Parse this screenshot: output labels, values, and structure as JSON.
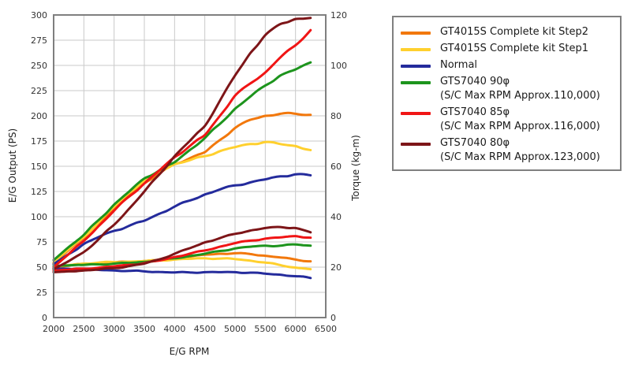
{
  "colors": {
    "background": "#ffffff",
    "plot_border": "#7f7f7f",
    "grid": "#c9c9c9",
    "tick_text": "#333333",
    "axis_title_text": "#222222",
    "legend_border": "#808080",
    "legend_text": "#1a1a1a"
  },
  "chart_data": {
    "type": "line",
    "title": "",
    "xlabel": "E/G RPM",
    "ylabel_left": "E/G Output (PS)",
    "ylabel_right": "Torque (kg-m)",
    "x_range": [
      2000,
      6500
    ],
    "y_left_range": [
      0,
      300
    ],
    "y_right_range": [
      0,
      120
    ],
    "x_ticks": [
      2000,
      2500,
      3000,
      3500,
      4000,
      4500,
      5000,
      5500,
      6000,
      6500
    ],
    "y_left_ticks": [
      0,
      25,
      50,
      75,
      100,
      125,
      150,
      175,
      200,
      225,
      250,
      275,
      300
    ],
    "y_right_ticks": [
      0,
      20,
      40,
      60,
      80,
      100,
      120
    ],
    "grid": true,
    "legend_position": "right",
    "rpm": [
      2000,
      2250,
      2500,
      2750,
      3000,
      3250,
      3500,
      3750,
      4000,
      4250,
      4500,
      4750,
      5000,
      5250,
      5500,
      5750,
      6000,
      6250
    ],
    "series": [
      {
        "label": "GT4015S Complete kit Step2",
        "note": "",
        "color": "#f2780c",
        "power_ps": [
          54,
          67,
          79,
          94,
          108,
          121,
          133,
          143,
          152,
          158,
          164,
          176,
          188,
          196,
          200,
          202,
          202,
          201
        ],
        "torque_kgm": [
          19.8,
          20.6,
          21.3,
          21.6,
          21.9,
          22.1,
          22.4,
          22.8,
          23.3,
          24.1,
          24.9,
          25.3,
          25.5,
          25.2,
          24.5,
          23.8,
          23.0,
          22.3
        ]
      },
      {
        "label": "GT4015S Complete kit Step1",
        "note": "",
        "color": "#ffd02e",
        "power_ps": [
          55,
          68,
          80,
          95,
          110,
          124,
          136,
          145,
          152,
          156,
          160,
          165,
          169,
          172,
          174,
          172,
          170,
          166
        ],
        "torque_kgm": [
          20.0,
          20.8,
          21.4,
          21.8,
          22.0,
          22.2,
          22.4,
          22.7,
          23.0,
          23.3,
          23.5,
          23.4,
          23.2,
          22.6,
          21.8,
          20.8,
          19.8,
          19.2
        ]
      },
      {
        "label": "Normal",
        "note": "",
        "color": "#242b9c",
        "power_ps": [
          53,
          63,
          73,
          80,
          86,
          91,
          96,
          103,
          110,
          116,
          122,
          127,
          131,
          134,
          137,
          140,
          142,
          141
        ],
        "torque_kgm": [
          19.5,
          19.3,
          19.1,
          18.9,
          18.7,
          18.5,
          18.3,
          18.1,
          17.9,
          17.9,
          18.0,
          18.0,
          18.0,
          17.8,
          17.4,
          17.0,
          16.4,
          15.7
        ]
      },
      {
        "label": "GTS7040 90φ",
        "note": "(S/C Max RPM Approx.110,000)",
        "color": "#1d941d",
        "power_ps": [
          57,
          70,
          82,
          97,
          112,
          125,
          138,
          146,
          154,
          166,
          178,
          192,
          207,
          219,
          230,
          240,
          246,
          253
        ],
        "torque_kgm": [
          20.5,
          20.7,
          20.9,
          21.1,
          21.4,
          21.7,
          22.1,
          22.7,
          23.5,
          24.4,
          25.3,
          26.4,
          27.4,
          28.1,
          28.5,
          28.5,
          29.0,
          28.5
        ]
      },
      {
        "label": "GTS7040 85φ",
        "note": "(S/C Max RPM Approx.116,000)",
        "color": "#f01515",
        "power_ps": [
          50,
          63,
          76,
          91,
          106,
          120,
          133,
          146,
          159,
          170,
          181,
          200,
          220,
          232,
          243,
          258,
          270,
          285
        ],
        "torque_kgm": [
          18.6,
          19.0,
          19.4,
          19.8,
          20.3,
          20.9,
          21.6,
          22.6,
          24.0,
          25.3,
          26.6,
          28.1,
          29.5,
          30.5,
          31.3,
          31.8,
          32.3,
          31.7
        ]
      },
      {
        "label": "GTS7040 80φ",
        "note": "(S/C Max RPM Approx.123,000)",
        "color": "#7d1518",
        "power_ps": [
          48,
          56,
          65,
          78,
          92,
          108,
          125,
          142,
          160,
          175,
          190,
          215,
          240,
          262,
          280,
          291,
          296,
          297
        ],
        "torque_kgm": [
          18.0,
          18.3,
          18.7,
          19.1,
          19.6,
          20.4,
          21.4,
          23.1,
          25.3,
          27.5,
          29.8,
          31.5,
          33.2,
          34.5,
          35.5,
          35.9,
          35.5,
          33.8
        ]
      }
    ]
  }
}
